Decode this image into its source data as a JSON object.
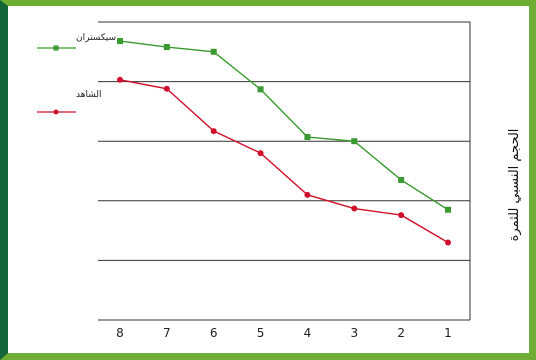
{
  "chart_data": {
    "type": "line",
    "direction": "rtl",
    "categories": [
      "1",
      "2",
      "3",
      "4",
      "5",
      "6",
      "7",
      "8"
    ],
    "ylabel": "الحجم النسبي للثمرة",
    "xlabel": "",
    "ylim": [
      0,
      5
    ],
    "grid": true,
    "legend_position": "top-left",
    "series": [
      {
        "name": "سيكستران",
        "color": "#3a9a2f",
        "marker": "square",
        "values": [
          1.85,
          2.35,
          3.0,
          3.07,
          3.87,
          4.5,
          4.58,
          4.68
        ]
      },
      {
        "name": "الشاهد",
        "color": "#d0102a",
        "marker": "circle",
        "values": [
          1.3,
          1.76,
          1.87,
          2.1,
          2.8,
          3.17,
          3.88,
          4.03
        ]
      }
    ]
  }
}
